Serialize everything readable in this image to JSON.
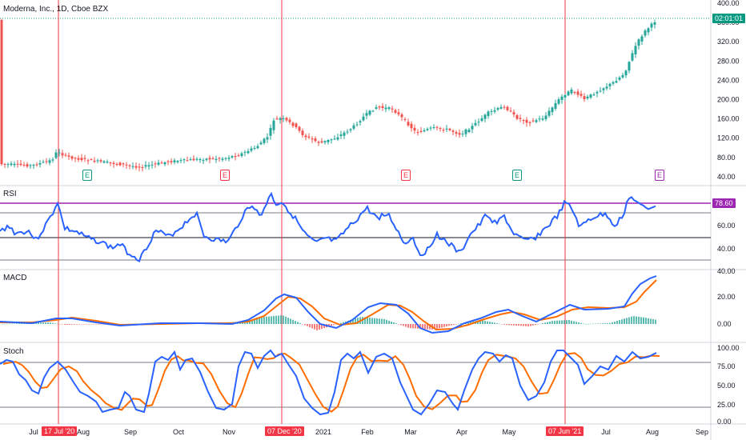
{
  "header": {
    "symbol_title": "Moderna, Inc., 1D, Cboe BZX"
  },
  "price_axis": {
    "labels": [
      "400.00",
      "360.00",
      "320.00",
      "280.00",
      "240.00",
      "200.00",
      "160.00",
      "120.00",
      "80.00",
      "40.00"
    ],
    "current_tag": "02:01:01"
  },
  "rsi": {
    "title": "RSI",
    "labels": [
      "80.00",
      "60.00",
      "40.00"
    ],
    "current_tag": "78.60",
    "levels": [
      70,
      50,
      30
    ]
  },
  "macd": {
    "title": "MACD",
    "labels": [
      "40.00",
      "20.00",
      "0.00"
    ]
  },
  "stoch": {
    "title": "Stoch",
    "labels": [
      "100.00",
      "75.00",
      "50.00",
      "25.00",
      "0.00"
    ],
    "levels": [
      80,
      20
    ]
  },
  "time_axis": {
    "labels": [
      "Jul",
      "Aug",
      "Sep",
      "Oct",
      "Nov",
      "2021",
      "Feb",
      "Mar",
      "Apr",
      "May",
      "Jul",
      "Aug",
      "Sep"
    ],
    "markers": [
      "17 Jul '20",
      "07 Dec '20",
      "07 Jun '21"
    ]
  },
  "earnings_badges": [
    {
      "label": "E",
      "color": "#089981"
    },
    {
      "label": "E",
      "color": "#f23645"
    },
    {
      "label": "E",
      "color": "#f23645"
    },
    {
      "label": "E",
      "color": "#089981"
    },
    {
      "label": "E",
      "color": "#9c27b0"
    }
  ],
  "colors": {
    "up": "#26a69a",
    "down": "#ef5350",
    "rsi": "#2962ff",
    "macd": "#2962ff",
    "signal": "#ff6d00",
    "marker": "#f23645",
    "rsi_level": "#9c27b0",
    "price_tag": "#089981"
  }
}
